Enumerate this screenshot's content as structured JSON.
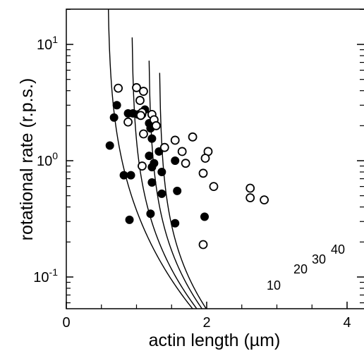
{
  "chart_data": {
    "type": "scatter",
    "xlabel": "actin length (µm)",
    "ylabel": "rotational rate (r.p.s.)",
    "xlim": [
      0,
      4.25
    ],
    "ylim": [
      0.055,
      20
    ],
    "yscale": "log",
    "grid": false,
    "x_ticks": [
      {
        "value": 0,
        "label": "0"
      },
      {
        "value": 2,
        "label": "2"
      },
      {
        "value": 4,
        "label": "4"
      }
    ],
    "y_ticks": [
      {
        "value": 0.1,
        "base": "10",
        "exp": "-1"
      },
      {
        "value": 1,
        "base": "10",
        "exp": "0"
      },
      {
        "value": 10,
        "base": "10",
        "exp": "1"
      }
    ],
    "series": [
      {
        "marker": "filled-circle",
        "color": "#000000",
        "points": [
          [
            0.72,
            3.0
          ],
          [
            0.88,
            2.55
          ],
          [
            0.95,
            2.55
          ],
          [
            1.02,
            2.5
          ],
          [
            1.08,
            2.5
          ],
          [
            1.12,
            2.75
          ],
          [
            0.68,
            2.35
          ],
          [
            1.18,
            2.1
          ],
          [
            1.2,
            1.9
          ],
          [
            1.22,
            1.55
          ],
          [
            1.32,
            1.2
          ],
          [
            1.18,
            1.1
          ],
          [
            1.25,
            0.95
          ],
          [
            1.22,
            0.88
          ],
          [
            1.36,
            0.8
          ],
          [
            1.55,
            1.0
          ],
          [
            0.62,
            1.35
          ],
          [
            0.82,
            0.75
          ],
          [
            0.92,
            0.75
          ],
          [
            1.22,
            0.65
          ],
          [
            1.36,
            0.52
          ],
          [
            1.58,
            0.55
          ],
          [
            1.2,
            0.35
          ],
          [
            0.9,
            0.31
          ],
          [
            1.55,
            0.29
          ],
          [
            1.97,
            0.33
          ]
        ]
      },
      {
        "marker": "open-circle",
        "color": "#000000",
        "points": [
          [
            0.74,
            4.2
          ],
          [
            1.0,
            4.25
          ],
          [
            1.1,
            3.95
          ],
          [
            1.05,
            3.3
          ],
          [
            1.08,
            2.6
          ],
          [
            1.06,
            2.45
          ],
          [
            0.88,
            2.15
          ],
          [
            1.22,
            2.5
          ],
          [
            1.25,
            2.25
          ],
          [
            1.28,
            2.0
          ],
          [
            1.1,
            1.7
          ],
          [
            1.8,
            1.6
          ],
          [
            1.55,
            1.5
          ],
          [
            1.4,
            1.3
          ],
          [
            1.65,
            1.2
          ],
          [
            2.02,
            1.2
          ],
          [
            1.98,
            1.05
          ],
          [
            1.7,
            0.95
          ],
          [
            1.08,
            0.9
          ],
          [
            1.95,
            0.78
          ],
          [
            2.1,
            0.6
          ],
          [
            2.62,
            0.58
          ],
          [
            2.62,
            0.48
          ],
          [
            2.82,
            0.46
          ],
          [
            1.95,
            0.19
          ]
        ]
      }
    ],
    "curves": [
      {
        "label": "10",
        "k": 0.3,
        "c": 0.2
      },
      {
        "label": "20",
        "k": 0.3,
        "c": 0.8
      },
      {
        "label": "30",
        "k": 0.3,
        "c": 1.6
      },
      {
        "label": "40",
        "k": 0.3,
        "c": 2.3
      }
    ]
  }
}
